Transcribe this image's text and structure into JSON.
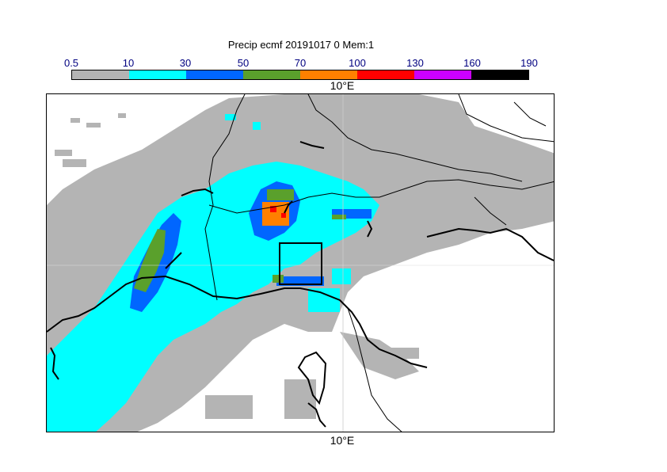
{
  "title": "Precip ecmf 20191017 0 Mem:1",
  "legend": {
    "ticks": [
      "0.5",
      "10",
      "30",
      "50",
      "70",
      "100",
      "130",
      "160",
      "190"
    ],
    "colors": [
      "#b4b4b4",
      "#00ffff",
      "#0066ff",
      "#5aa02c",
      "#ff8000",
      "#ff0000",
      "#cc00ff",
      "#000000"
    ]
  },
  "map": {
    "lon_label_top": "10°E",
    "lon_label_bottom": "10°E"
  }
}
